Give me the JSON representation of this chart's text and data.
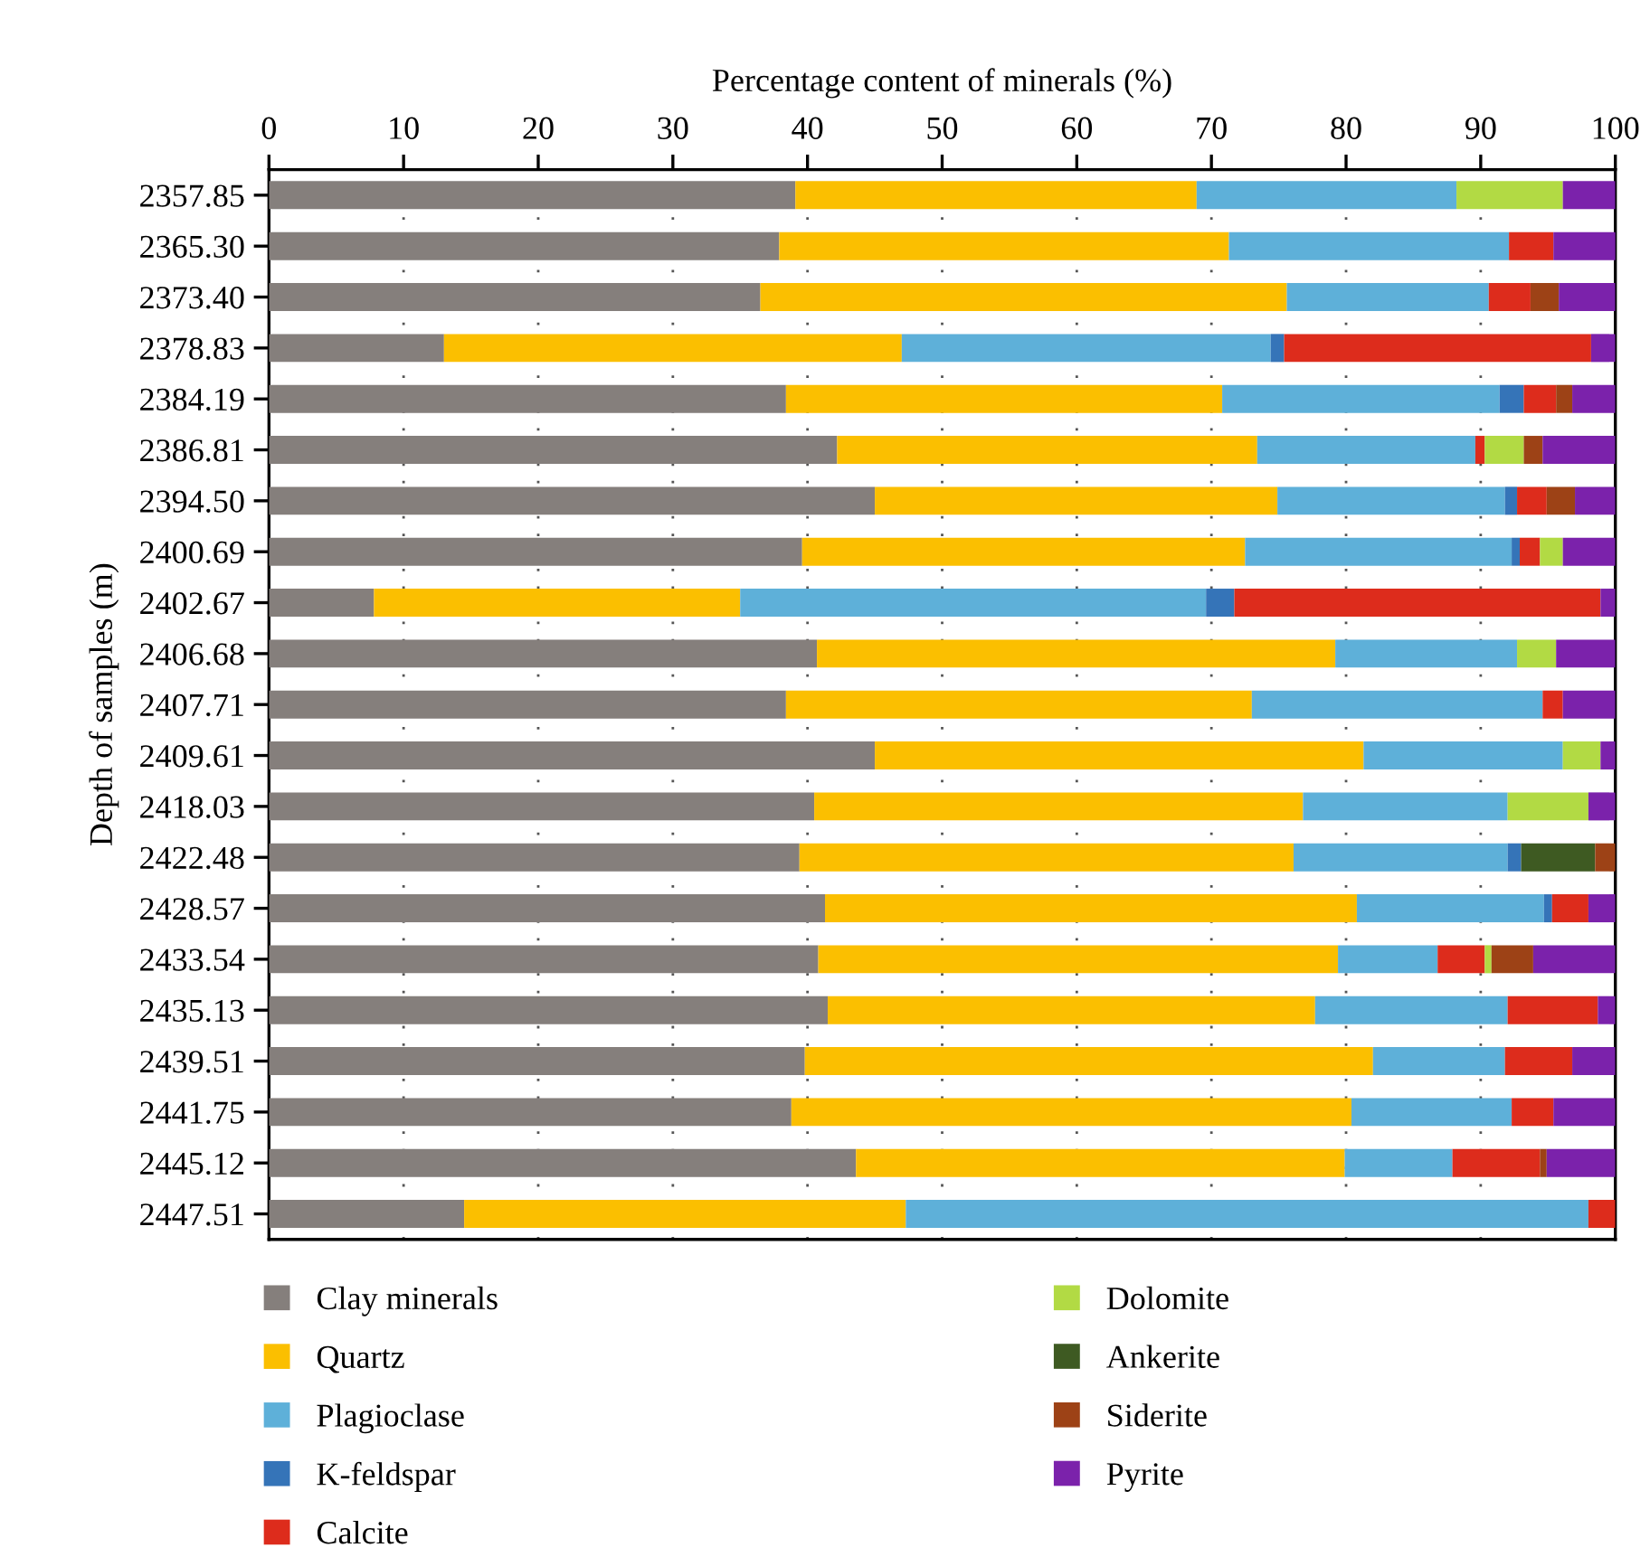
{
  "chart_data": {
    "type": "bar",
    "orientation": "horizontal",
    "stacked": true,
    "xlabel": "Percentage content of minerals (%)",
    "ylabel": "Depth of samples (m)",
    "categories": [
      "2357.85",
      "2365.30",
      "2373.40",
      "2378.83",
      "2384.19",
      "2386.81",
      "2394.50",
      "2400.69",
      "2402.67",
      "2406.68",
      "2407.71",
      "2409.61",
      "2418.03",
      "2422.48",
      "2428.57",
      "2433.54",
      "2435.13",
      "2439.51",
      "2441.75",
      "2445.12",
      "2447.51"
    ],
    "xlim": [
      0,
      100
    ],
    "xticks": [
      0,
      10,
      20,
      30,
      40,
      50,
      60,
      70,
      80,
      90,
      100
    ],
    "grid": "x",
    "legend": "bottom",
    "series": [
      {
        "name": "Clay minerals",
        "color": "#857f7c",
        "values": [
          39.1,
          37.9,
          36.5,
          13.0,
          38.4,
          42.2,
          45.0,
          39.6,
          7.8,
          40.7,
          38.4,
          45.0,
          40.5,
          39.4,
          41.3,
          40.8,
          41.5,
          39.8,
          38.8,
          43.6,
          14.5
        ]
      },
      {
        "name": "Quartz",
        "color": "#fbbf00",
        "values": [
          29.8,
          33.4,
          39.1,
          34.0,
          32.4,
          31.2,
          29.9,
          32.9,
          27.2,
          38.5,
          34.6,
          36.3,
          36.3,
          36.7,
          39.5,
          38.6,
          36.2,
          42.2,
          41.6,
          36.3,
          32.8
        ]
      },
      {
        "name": "Plagioclase",
        "color": "#5eb0d9",
        "values": [
          19.3,
          20.8,
          15.0,
          27.4,
          20.6,
          16.2,
          16.9,
          19.8,
          34.6,
          13.5,
          21.6,
          14.8,
          15.2,
          15.9,
          13.9,
          7.4,
          14.3,
          9.8,
          11.9,
          8.0,
          50.7
        ]
      },
      {
        "name": "K-feldspar",
        "color": "#3574b8",
        "values": [
          null,
          null,
          null,
          1.0,
          1.8,
          null,
          0.9,
          0.6,
          2.1,
          null,
          null,
          null,
          null,
          1.0,
          0.6,
          null,
          null,
          null,
          null,
          null,
          null
        ]
      },
      {
        "name": "Calcite",
        "color": "#dd2c1c",
        "values": [
          null,
          3.3,
          3.1,
          22.8,
          2.4,
          0.7,
          2.2,
          1.5,
          27.2,
          null,
          1.5,
          null,
          null,
          null,
          2.7,
          3.5,
          6.7,
          5.0,
          3.1,
          6.5,
          2.0
        ]
      },
      {
        "name": "Dolomite",
        "color": "#b2da44",
        "values": [
          7.9,
          null,
          null,
          null,
          null,
          2.9,
          null,
          1.7,
          null,
          2.9,
          null,
          2.8,
          6.0,
          null,
          null,
          0.5,
          null,
          null,
          null,
          null,
          null
        ]
      },
      {
        "name": "Ankerite",
        "color": "#3e5a22",
        "values": [
          null,
          null,
          null,
          null,
          null,
          null,
          null,
          null,
          null,
          null,
          null,
          null,
          null,
          5.5,
          null,
          null,
          null,
          null,
          null,
          null,
          null
        ]
      },
      {
        "name": "Siderite",
        "color": "#9d4216",
        "values": [
          null,
          null,
          2.1,
          null,
          1.2,
          1.4,
          2.1,
          null,
          null,
          null,
          null,
          null,
          null,
          1.5,
          null,
          3.1,
          null,
          null,
          null,
          0.5,
          null
        ]
      },
      {
        "name": "Pyrite",
        "color": "#7b22ab",
        "values": [
          3.9,
          4.7,
          4.2,
          1.8,
          3.2,
          5.4,
          3.0,
          3.9,
          1.1,
          4.4,
          3.9,
          1.1,
          2.0,
          null,
          2.0,
          6.1,
          1.3,
          3.2,
          4.6,
          5.1,
          null
        ]
      }
    ]
  }
}
